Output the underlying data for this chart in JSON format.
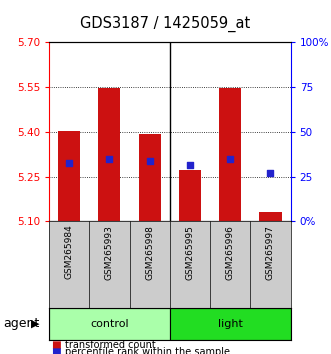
{
  "title": "GDS3187 / 1425059_at",
  "samples": [
    "GSM265984",
    "GSM265993",
    "GSM265998",
    "GSM265995",
    "GSM265996",
    "GSM265997"
  ],
  "group_labels": [
    "control",
    "light"
  ],
  "group_colors": [
    "#AAFFAA",
    "#22DD22"
  ],
  "bar_bottom": 5.1,
  "bar_tops": [
    5.402,
    5.547,
    5.392,
    5.272,
    5.547,
    5.132
  ],
  "percentile_values": [
    5.297,
    5.308,
    5.303,
    5.288,
    5.308,
    5.263
  ],
  "ylim": [
    5.1,
    5.7
  ],
  "yticks_left": [
    5.1,
    5.25,
    5.4,
    5.55,
    5.7
  ],
  "yticks_right_labels": [
    "0%",
    "25",
    "50",
    "75",
    "100%"
  ],
  "bar_color": "#CC1111",
  "blue_color": "#2222CC",
  "bar_width": 0.55,
  "title_fontsize": 10.5,
  "tick_fontsize": 7.5,
  "sample_fontsize": 6.5,
  "group_fontsize": 8,
  "legend_fontsize": 7,
  "agent_fontsize": 9
}
